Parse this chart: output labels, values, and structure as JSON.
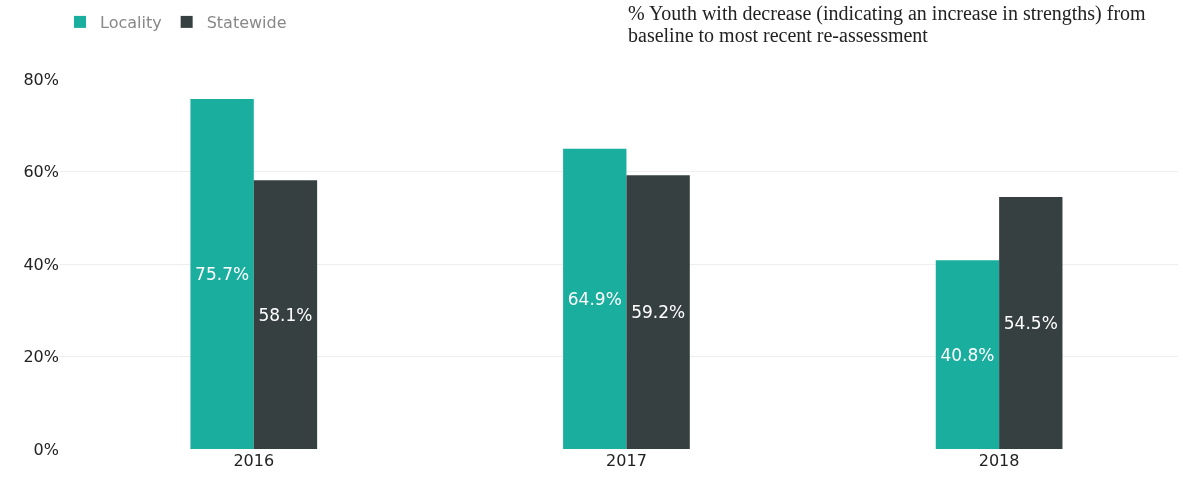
{
  "chart_data": {
    "type": "bar",
    "title": "% Youth with decrease (indicating an increase in strengths) from baseline to most recent re-assessment",
    "categories": [
      "2016",
      "2017",
      "2018"
    ],
    "series": [
      {
        "name": "Locality",
        "color": "#1aae9f",
        "values": [
          75.7,
          64.9,
          40.8
        ],
        "value_labels": [
          "75.7%",
          "64.9%",
          "40.8%"
        ]
      },
      {
        "name": "Statewide",
        "color": "#374040",
        "values": [
          58.1,
          59.2,
          54.5
        ],
        "value_labels": [
          "58.1%",
          "59.2%",
          "54.5%"
        ]
      }
    ],
    "ylim": [
      0,
      80
    ],
    "yticks": [
      {
        "value": 0,
        "label": "0%"
      },
      {
        "value": 20,
        "label": "20%"
      },
      {
        "value": 40,
        "label": "40%"
      },
      {
        "value": 60,
        "label": "60%"
      },
      {
        "value": 80,
        "label": "80%"
      }
    ],
    "grid": "y",
    "legend": "top left"
  }
}
